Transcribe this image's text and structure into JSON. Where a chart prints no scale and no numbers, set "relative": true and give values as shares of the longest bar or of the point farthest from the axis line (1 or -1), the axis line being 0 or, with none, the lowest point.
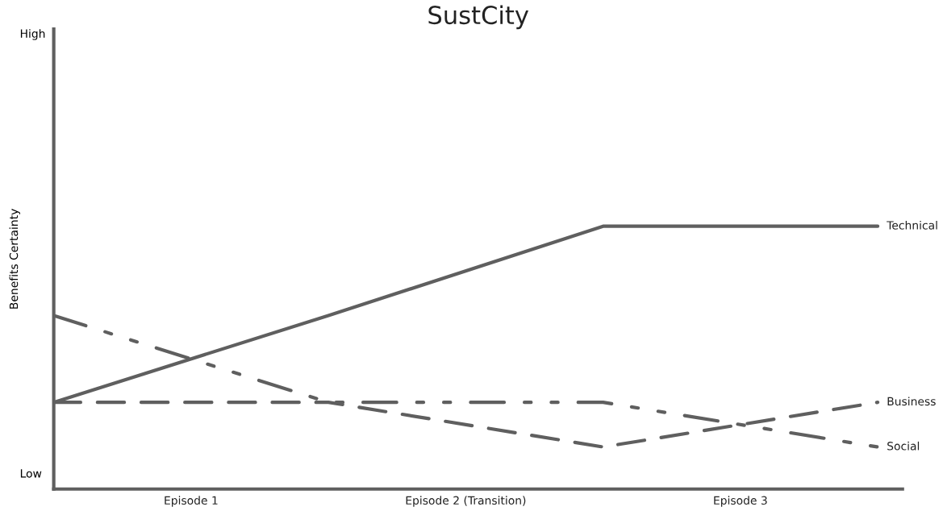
{
  "chart_data": {
    "type": "line",
    "title": "SustCity",
    "ylabel": "Benefits Certainty",
    "relative": true,
    "categories": [
      null,
      null,
      null,
      null
    ],
    "series": [
      {
        "name": "Technical",
        "color": "#5f5f5f",
        "values": [
          0.33,
          0.66,
          1,
          1
        ],
        "line_style": "solid"
      },
      {
        "name": "Business",
        "color": "#5f5f5f",
        "values": [
          0.33,
          0.33,
          0.16,
          0.33
        ],
        "line_style": "dashed"
      },
      {
        "name": "Social",
        "color": "#5f5f5f",
        "values": [
          0.66,
          0.33,
          0.33,
          0.16
        ],
        "line_style": "dashdot"
      }
    ],
    "annotations": [
      "High",
      "Low",
      "Episode 1",
      "Episode 2 (Transition)",
      "Episode 3"
    ],
    "grid": false,
    "legend": false
  }
}
